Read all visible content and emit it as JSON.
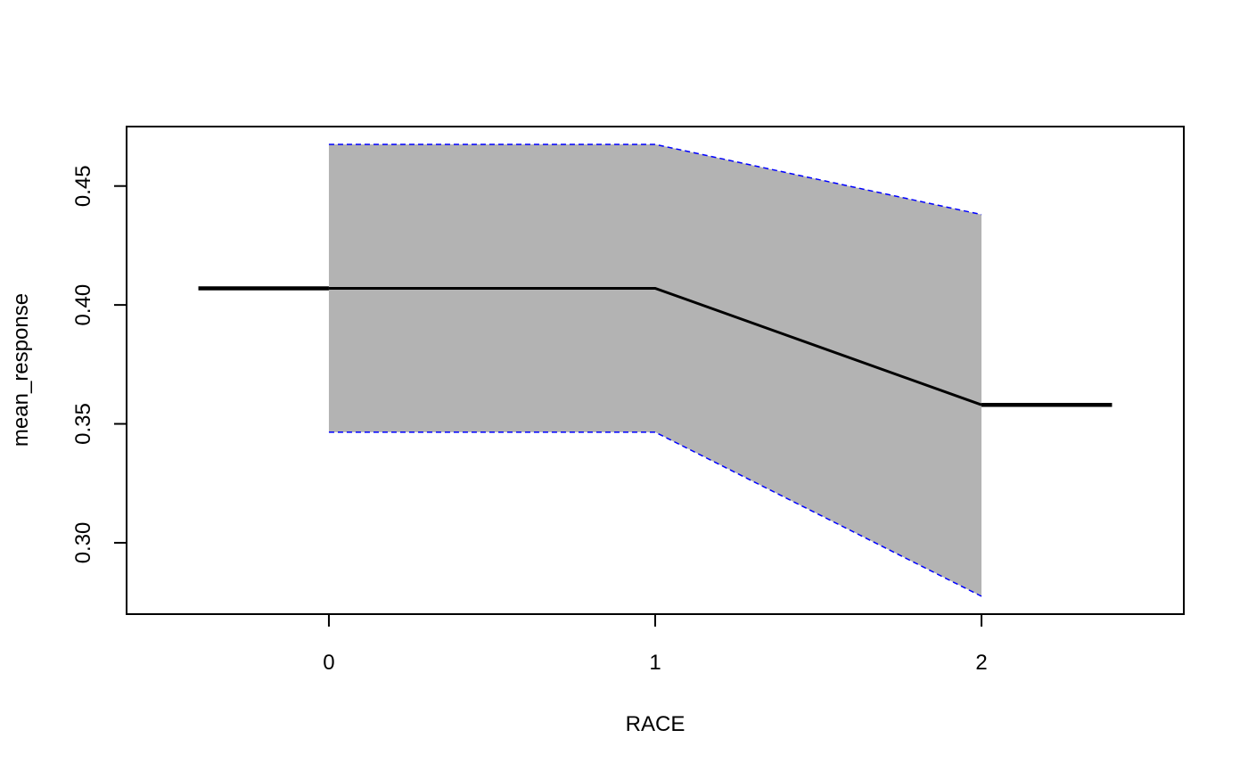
{
  "chart_data": {
    "type": "line",
    "xlabel": "RACE",
    "ylabel": "mean_response",
    "x_ticks": [
      "0",
      "1",
      "2"
    ],
    "y_ticks": [
      "0.30",
      "0.35",
      "0.40",
      "0.45"
    ],
    "xlim": [
      -0.62,
      2.62
    ],
    "ylim": [
      0.27,
      0.475
    ],
    "grid": false,
    "legend": "none",
    "series": [
      {
        "style": "line",
        "color": "#000000",
        "x": [
          -0.4,
          0,
          1,
          2,
          2.4
        ],
        "y": [
          0.407,
          0.407,
          0.407,
          0.358,
          0.358
        ]
      }
    ],
    "band": {
      "fill": "#b3b3b3",
      "border_color": "#0000ff",
      "border_style": "dashed",
      "x": [
        0,
        1,
        2
      ],
      "upper": [
        0.4675,
        0.4675,
        0.438
      ],
      "lower": [
        0.3465,
        0.3465,
        0.2775
      ]
    }
  }
}
